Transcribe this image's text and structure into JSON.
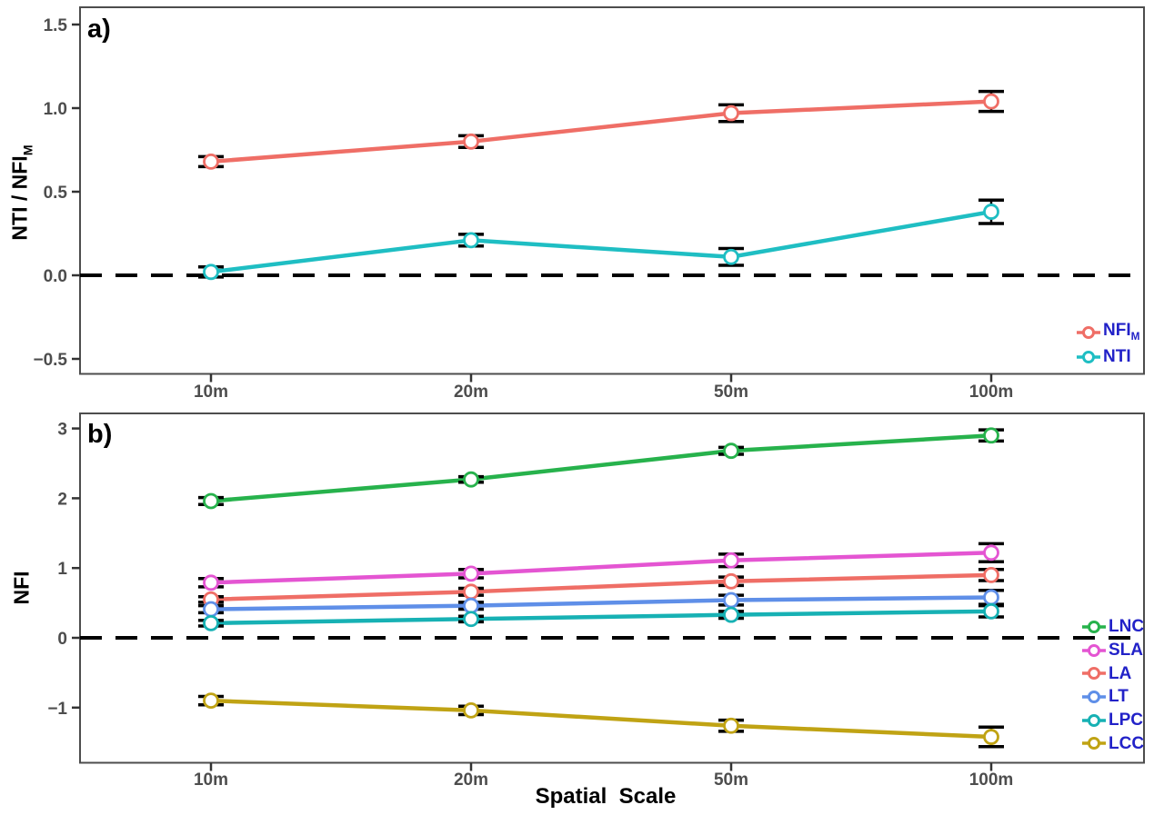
{
  "figure": {
    "x_axis_title": "Spatial  Scale",
    "axis_text_color": "#4d4d4d",
    "legend_text_color": "#2222c8",
    "zero_line_style": "black dashed"
  },
  "chart_data": [
    {
      "type": "line",
      "panel_label": "a)",
      "ylabel_main": "NTI / NFI",
      "ylabel_sub": "M",
      "xlabel": "",
      "categories": [
        "10m",
        "20m",
        "50m",
        "100m"
      ],
      "yticks": [
        "−0.5",
        "0.0",
        "0.5",
        "1.0",
        "1.5"
      ],
      "ylim": [
        -0.59,
        1.6
      ],
      "grid": false,
      "zero_line": true,
      "legend_position": "bottom-right-inside",
      "series": [
        {
          "name_main": "NFI",
          "name_sub": "M",
          "color": "#ef6e66",
          "values": [
            0.68,
            0.8,
            0.97,
            1.04
          ],
          "errors": [
            0.03,
            0.035,
            0.05,
            0.06
          ]
        },
        {
          "name_main": "NTI",
          "name_sub": "",
          "color": "#1fbec3",
          "values": [
            0.02,
            0.21,
            0.11,
            0.38
          ],
          "errors": [
            0.03,
            0.035,
            0.05,
            0.07
          ]
        }
      ]
    },
    {
      "type": "line",
      "panel_label": "b)",
      "ylabel_main": "NFI",
      "ylabel_sub": "",
      "xlabel": "Spatial  Scale",
      "categories": [
        "10m",
        "20m",
        "50m",
        "100m"
      ],
      "yticks": [
        "−1",
        "0",
        "1",
        "2",
        "3"
      ],
      "ylim": [
        -1.8,
        3.23
      ],
      "grid": false,
      "zero_line": true,
      "legend_position": "bottom-right-inside",
      "series": [
        {
          "name_main": "LNC",
          "name_sub": "",
          "color": "#27b24c",
          "values": [
            1.96,
            2.27,
            2.68,
            2.9
          ],
          "errors": [
            0.05,
            0.04,
            0.05,
            0.08
          ]
        },
        {
          "name_main": "SLA",
          "name_sub": "",
          "color": "#e455d2",
          "values": [
            0.79,
            0.92,
            1.11,
            1.22
          ],
          "errors": [
            0.06,
            0.06,
            0.09,
            0.13
          ]
        },
        {
          "name_main": "LA",
          "name_sub": "",
          "color": "#ef6e66",
          "values": [
            0.55,
            0.66,
            0.81,
            0.9
          ],
          "errors": [
            0.04,
            0.05,
            0.06,
            0.08
          ]
        },
        {
          "name_main": "LT",
          "name_sub": "",
          "color": "#5f8fe8",
          "values": [
            0.41,
            0.46,
            0.54,
            0.58
          ],
          "errors": [
            0.05,
            0.05,
            0.07,
            0.1
          ]
        },
        {
          "name_main": "LPC",
          "name_sub": "",
          "color": "#17b1b4",
          "values": [
            0.21,
            0.27,
            0.33,
            0.38
          ],
          "errors": [
            0.04,
            0.04,
            0.05,
            0.08
          ]
        },
        {
          "name_main": "LCC",
          "name_sub": "",
          "color": "#c0a314",
          "values": [
            -0.9,
            -1.04,
            -1.26,
            -1.42
          ],
          "errors": [
            0.06,
            0.06,
            0.08,
            0.14
          ]
        }
      ]
    }
  ]
}
